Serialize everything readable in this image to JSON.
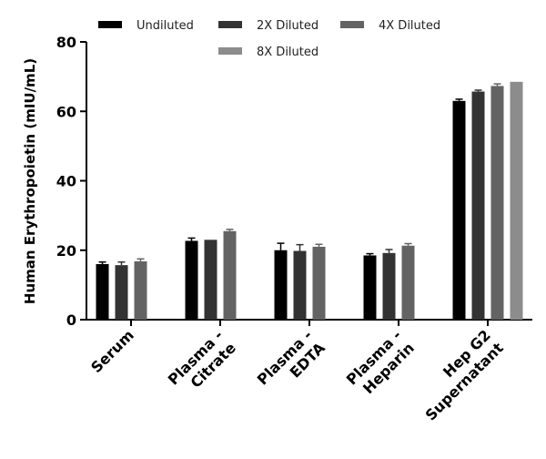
{
  "chart_data": {
    "type": "bar",
    "y_label": "Human Erythropoietin (mIU/mL)",
    "categories": [
      [
        "Serum"
      ],
      [
        "Plasma -",
        "Citrate"
      ],
      [
        "Plasma -",
        "EDTA"
      ],
      [
        "Plasma -",
        "Heparin"
      ],
      [
        "Hep G2",
        "Supernatant"
      ]
    ],
    "series": [
      {
        "name": "Undiluted",
        "color": "#000000",
        "values": [
          16.0,
          22.7,
          20.0,
          18.5,
          63.0
        ],
        "errors": [
          0.6,
          0.8,
          2.0,
          0.5,
          0.5
        ]
      },
      {
        "name": "2X Diluted",
        "color": "#333333",
        "values": [
          15.7,
          23.0,
          19.8,
          19.2,
          65.7
        ],
        "errors": [
          0.9,
          null,
          1.8,
          1.0,
          0.4
        ]
      },
      {
        "name": "4X Diluted",
        "color": "#636363",
        "values": [
          16.8,
          25.5,
          21.0,
          21.3,
          67.3
        ],
        "errors": [
          0.7,
          0.5,
          0.7,
          0.6,
          0.6
        ]
      },
      {
        "name": "8X Diluted",
        "color": "#8c8c8c",
        "values": [
          null,
          null,
          null,
          null,
          68.5
        ],
        "errors": [
          null,
          null,
          null,
          null,
          null
        ]
      }
    ],
    "ylim": [
      0,
      80
    ],
    "yticks": [
      0,
      20,
      40,
      60,
      80
    ],
    "legend": "top"
  }
}
